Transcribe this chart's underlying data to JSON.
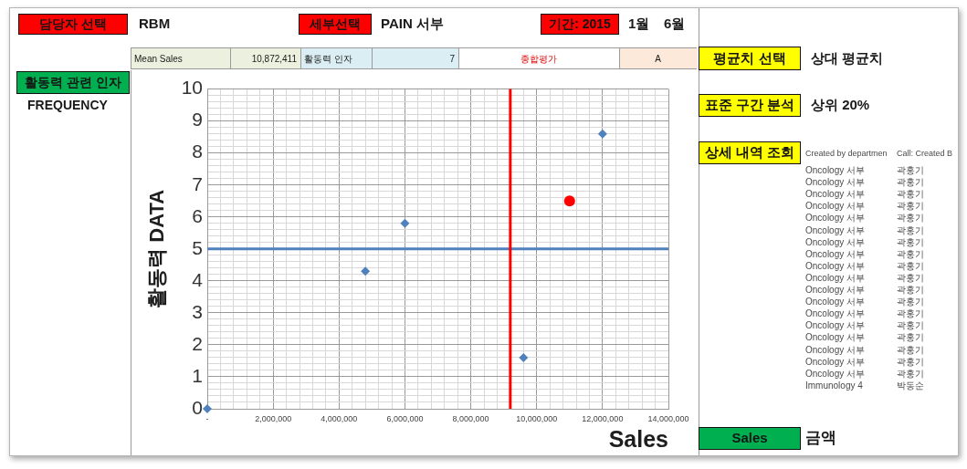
{
  "chart_data": {
    "type": "scatter",
    "xlabel": "Sales",
    "ylabel": "활동력 DATA",
    "xlim": [
      0,
      14000000
    ],
    "ylim": [
      0,
      10
    ],
    "xticks": [
      {
        "value": 0,
        "label": "-"
      },
      {
        "value": 400000,
        "label": null
      },
      {
        "value": 800000,
        "label": null
      },
      {
        "value": 1200000,
        "label": null
      },
      {
        "value": 1600000,
        "label": null
      },
      {
        "value": 2000000,
        "label": "2,000,000"
      },
      {
        "value": 2400000,
        "label": null
      },
      {
        "value": 2800000,
        "label": null
      },
      {
        "value": 3200000,
        "label": null
      },
      {
        "value": 3600000,
        "label": null
      },
      {
        "value": 4000000,
        "label": "4,000,000"
      },
      {
        "value": 4400000,
        "label": null
      },
      {
        "value": 4800000,
        "label": null
      },
      {
        "value": 5200000,
        "label": null
      },
      {
        "value": 5600000,
        "label": null
      },
      {
        "value": 6000000,
        "label": "6,000,000"
      },
      {
        "value": 6400000,
        "label": null
      },
      {
        "value": 6800000,
        "label": null
      },
      {
        "value": 7200000,
        "label": null
      },
      {
        "value": 7600000,
        "label": null
      },
      {
        "value": 8000000,
        "label": "8,000,000"
      },
      {
        "value": 8400000,
        "label": null
      },
      {
        "value": 8800000,
        "label": null
      },
      {
        "value": 9200000,
        "label": null
      },
      {
        "value": 9600000,
        "label": null
      },
      {
        "value": 10000000,
        "label": "10,000,000"
      },
      {
        "value": 10400000,
        "label": null
      },
      {
        "value": 10800000,
        "label": null
      },
      {
        "value": 11200000,
        "label": null
      },
      {
        "value": 11600000,
        "label": null
      },
      {
        "value": 12000000,
        "label": "12,000,000"
      },
      {
        "value": 12400000,
        "label": null
      },
      {
        "value": 12800000,
        "label": null
      },
      {
        "value": 13200000,
        "label": null
      },
      {
        "value": 13600000,
        "label": null
      },
      {
        "value": 14000000,
        "label": "14,000,000"
      }
    ],
    "yticks": [
      0,
      {
        "value": 0.2,
        "label": null
      },
      {
        "value": 0.4,
        "label": null
      },
      {
        "value": 0.6,
        "label": null
      },
      {
        "value": 0.8,
        "label": null
      },
      1,
      {
        "value": 1.2,
        "label": null
      },
      {
        "value": 1.4,
        "label": null
      },
      {
        "value": 1.6,
        "label": null
      },
      {
        "value": 1.8,
        "label": null
      },
      2,
      {
        "value": 2.2,
        "label": null
      },
      {
        "value": 2.4,
        "label": null
      },
      {
        "value": 2.6,
        "label": null
      },
      {
        "value": 2.8,
        "label": null
      },
      3,
      {
        "value": 3.2,
        "label": null
      },
      {
        "value": 3.4,
        "label": null
      },
      {
        "value": 3.6,
        "label": null
      },
      {
        "value": 3.8,
        "label": null
      },
      4,
      {
        "value": 4.2,
        "label": null
      },
      {
        "value": 4.4,
        "label": null
      },
      {
        "value": 4.6,
        "label": null
      },
      {
        "value": 4.8,
        "label": null
      },
      5,
      {
        "value": 5.2,
        "label": null
      },
      {
        "value": 5.4,
        "label": null
      },
      {
        "value": 5.6,
        "label": null
      },
      {
        "value": 5.8,
        "label": null
      },
      6,
      {
        "value": 6.2,
        "label": null
      },
      {
        "value": 6.4,
        "label": null
      },
      {
        "value": 6.6,
        "label": null
      },
      {
        "value": 6.8,
        "label": null
      },
      7,
      {
        "value": 7.2,
        "label": null
      },
      {
        "value": 7.4,
        "label": null
      },
      {
        "value": 7.6,
        "label": null
      },
      {
        "value": 7.8,
        "label": null
      },
      8,
      {
        "value": 8.2,
        "label": null
      },
      {
        "value": 8.4,
        "label": null
      },
      {
        "value": 8.6,
        "label": null
      },
      {
        "value": 8.8,
        "label": null
      },
      9,
      {
        "value": 9.2,
        "label": null
      },
      {
        "value": 9.4,
        "label": null
      },
      {
        "value": 9.6,
        "label": null
      },
      {
        "value": 9.8,
        "label": null
      },
      10
    ],
    "grid": true,
    "marker": "diamond",
    "series": [
      {
        "color": "#4f81bd",
        "x": [
          0,
          4800000,
          6000000,
          9600000,
          12000000
        ],
        "values": [
          0,
          4.3,
          5.8,
          1.6,
          8.6
        ]
      },
      {
        "color": "#ff0000",
        "marker": "circle",
        "x": [
          11000000
        ],
        "values": [
          6.5
        ]
      }
    ],
    "ref_lines": [
      {
        "axis": "y",
        "value": 5.0,
        "color": "#4f81bd"
      },
      {
        "axis": "x",
        "value": 9200000,
        "color": "#ff0000"
      }
    ],
    "annotations": [
      "담당자 선택",
      "RBM",
      "세부선택",
      "PAIN 서부",
      "기간: 2015",
      "1월",
      "6월",
      "Mean Sales",
      "10,872,411",
      "활동력 인자",
      "7",
      "종합평가",
      "A",
      "활동력 관련 인자",
      "FREQUENCY",
      "평균치 선택",
      "상대 평균치",
      "표준 구간 분석",
      "상위 20%",
      "상세 내역 조회",
      "Sales",
      "금액",
      "Created by departmen",
      "Call: Created B",
      "Oncology 서부",
      "곽홍기",
      "Oncology 서부",
      "곽홍기",
      "Oncology 서부",
      "곽홍기",
      "Oncology 서부",
      "곽홍기",
      "Oncology 서부",
      "곽홍기",
      "Oncology 서부",
      "곽홍기",
      "Oncology 서부",
      "곽홍기",
      "Oncology 서부",
      "곽홍기",
      "Oncology 서부",
      "곽홍기",
      "Oncology 서부",
      "곽홍기",
      "Oncology 서부",
      "곽홍기",
      "Oncology 서부",
      "곽홍기",
      "Oncology 서부",
      "곽홍기",
      "Oncology 서부",
      "곽홍기",
      "Oncology 서부",
      "곽홍기",
      "Oncology 서부",
      "곽홍기",
      "Oncology 서부",
      "곽홍기",
      "Oncology 서부",
      "곽홍기",
      "Immunology 4",
      "박동순"
    ]
  }
}
